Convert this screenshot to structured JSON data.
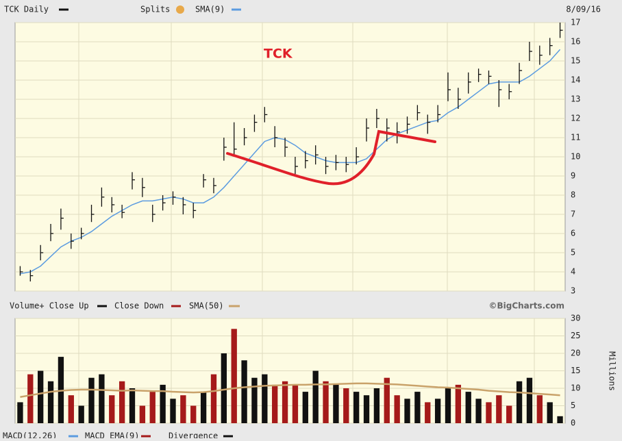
{
  "chart_data": [
    {
      "type": "ohlc",
      "series": [
        {
          "name": "TCK Daily",
          "color": "#111111",
          "high": [
            4.3,
            4.1,
            5.4,
            6.5,
            7.3,
            6.0,
            6.3,
            7.5,
            8.4,
            7.9,
            7.5,
            9.2,
            8.9,
            7.5,
            8.0,
            8.2,
            7.9,
            7.6,
            9.1,
            8.9,
            11.0,
            11.8,
            11.5,
            12.2,
            12.6,
            11.6,
            11.0,
            10.0,
            10.3,
            10.6,
            10.0,
            10.1,
            10.0,
            10.5,
            12.0,
            12.5,
            12.0,
            11.8,
            12.1,
            12.7,
            12.2,
            12.7,
            14.4,
            13.6,
            14.4,
            14.6,
            14.5,
            14.0,
            13.8,
            14.9,
            16.0,
            15.8,
            16.2,
            17.0
          ],
          "low": [
            3.8,
            3.5,
            4.6,
            5.6,
            6.2,
            5.2,
            5.7,
            6.6,
            7.4,
            7.1,
            6.8,
            8.3,
            7.9,
            6.6,
            7.2,
            7.5,
            7.0,
            6.8,
            8.4,
            8.1,
            9.8,
            10.0,
            10.6,
            11.3,
            11.8,
            10.5,
            10.0,
            9.1,
            9.4,
            9.6,
            9.1,
            9.3,
            9.2,
            9.6,
            10.8,
            11.5,
            10.8,
            10.7,
            11.2,
            11.9,
            11.2,
            11.8,
            12.9,
            12.5,
            13.3,
            13.9,
            13.8,
            12.6,
            13.0,
            13.8,
            15.0,
            14.8,
            15.3,
            16.2
          ],
          "close": [
            4.0,
            3.8,
            5.0,
            6.0,
            6.8,
            5.6,
            6.0,
            7.0,
            7.9,
            7.5,
            7.1,
            8.8,
            8.4,
            7.0,
            7.6,
            7.9,
            7.5,
            7.2,
            8.8,
            8.5,
            10.5,
            10.4,
            11.0,
            11.8,
            12.2,
            11.0,
            10.5,
            9.5,
            9.8,
            10.1,
            9.5,
            9.7,
            9.6,
            10.0,
            11.5,
            12.0,
            11.5,
            11.3,
            11.7,
            12.3,
            11.8,
            12.2,
            13.5,
            13.0,
            13.9,
            14.3,
            14.2,
            13.5,
            13.4,
            14.5,
            15.5,
            15.3,
            15.8,
            16.6
          ]
        },
        {
          "name": "SMA(9)",
          "color": "#5b9be0",
          "values": [
            3.9,
            4.0,
            4.3,
            4.8,
            5.3,
            5.6,
            5.8,
            6.1,
            6.5,
            6.9,
            7.2,
            7.5,
            7.7,
            7.7,
            7.8,
            7.9,
            7.8,
            7.6,
            7.6,
            7.9,
            8.4,
            9.0,
            9.6,
            10.2,
            10.8,
            11.0,
            10.9,
            10.6,
            10.2,
            10.0,
            9.8,
            9.7,
            9.7,
            9.7,
            9.9,
            10.4,
            10.9,
            11.2,
            11.4,
            11.6,
            11.8,
            11.9,
            12.3,
            12.6,
            13.0,
            13.4,
            13.8,
            13.9,
            13.9,
            13.9,
            14.2,
            14.6,
            15.0,
            15.6
          ]
        }
      ],
      "splits_label": "Splits",
      "date": "8/09/16",
      "annotation": "TCK",
      "ylim": [
        3,
        17
      ],
      "yticks": [
        3,
        4,
        5,
        6,
        7,
        8,
        9,
        10,
        11,
        12,
        13,
        14,
        15,
        16,
        17
      ],
      "grid": true
    },
    {
      "type": "volume",
      "legend": [
        {
          "name": "Volume+ Close Up",
          "color": "#111111"
        },
        {
          "name": "Close Down",
          "color": "#a51a1a"
        }
      ],
      "values": [
        6,
        14,
        15,
        12,
        19,
        8,
        5,
        13,
        14,
        8,
        12,
        10,
        5,
        9,
        11,
        7,
        8,
        5,
        9,
        14,
        20,
        27,
        18,
        13,
        14,
        11,
        12,
        11,
        9,
        15,
        12,
        11,
        10,
        9,
        8,
        10,
        13,
        8,
        7,
        9,
        6,
        7,
        10,
        11,
        9,
        7,
        6,
        8,
        5,
        12,
        13,
        8,
        6,
        2
      ],
      "sma": {
        "name": "SMA(50)",
        "color": "#c9a26a",
        "values": [
          7.5,
          8,
          8.5,
          9,
          9.3,
          9.5,
          9.6,
          9.6,
          9.5,
          9.4,
          9.3,
          9.4,
          9.3,
          9.2,
          9.2,
          9,
          8.9,
          8.8,
          8.9,
          9.2,
          9.6,
          10,
          10.3,
          10.5,
          10.7,
          10.8,
          10.9,
          11,
          11,
          11.1,
          11.1,
          11.2,
          11.3,
          11.4,
          11.4,
          11.3,
          11.2,
          11.1,
          10.9,
          10.7,
          10.5,
          10.3,
          10.2,
          10.0,
          9.8,
          9.6,
          9.3,
          9.1,
          8.9,
          8.8,
          8.6,
          8.4,
          8.2,
          8.0
        ]
      },
      "credit": "©BigCharts.com",
      "ylabel": "Millions",
      "ylim": [
        0,
        30
      ],
      "yticks": [
        0,
        5,
        10,
        15,
        20,
        25,
        30
      ],
      "grid": true
    }
  ],
  "footer_legend": [
    "MACD(12,26)",
    "MACD EMA(9)",
    "Divergence"
  ]
}
